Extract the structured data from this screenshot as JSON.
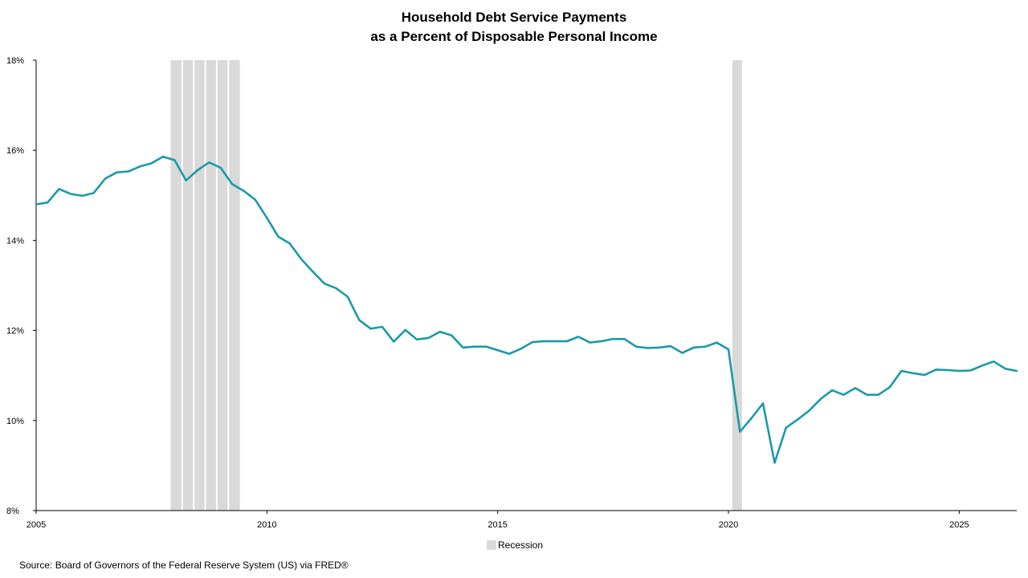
{
  "title": {
    "line1": "Household Debt Service Payments",
    "line2": "as a Percent of Disposable Personal Income"
  },
  "legend": {
    "recession_label": "Recession"
  },
  "source": "Source: Board of Governors of the Federal Reserve System (US) via FRED®",
  "colors": {
    "series": "#1a9aa8",
    "recession": "#d9d9d9",
    "axis": "#000000"
  },
  "chart_data": {
    "type": "line",
    "title": "Household Debt Service Payments as a Percent of Disposable Personal Income",
    "xlabel": "",
    "ylabel": "",
    "ylim": [
      8,
      18
    ],
    "xlim": [
      "2005-01-01",
      "2026-04-01"
    ],
    "y_ticks": [
      "8%",
      "10%",
      "12%",
      "14%",
      "16%",
      "18%"
    ],
    "y_tick_values": [
      8,
      10,
      12,
      14,
      16,
      18
    ],
    "x_ticks": [
      "2005",
      "2010",
      "2015",
      "2020",
      "2025"
    ],
    "x_tick_values": [
      "2005-01-01",
      "2010-01-01",
      "2015-01-01",
      "2020-01-01",
      "2025-01-01"
    ],
    "grid": false,
    "legend_position": "bottom-center",
    "recessions": [
      {
        "start": "2007-12-01",
        "end": "2009-06-01"
      },
      {
        "start": "2020-02-01",
        "end": "2020-04-01"
      }
    ],
    "series": [
      {
        "x": [
          "2005-01-01",
          "2005-04-01",
          "2005-07-01",
          "2005-10-01",
          "2006-01-01",
          "2006-04-01",
          "2006-07-01",
          "2006-10-01",
          "2007-01-01",
          "2007-04-01",
          "2007-07-01",
          "2007-10-01",
          "2008-01-01",
          "2008-04-01",
          "2008-07-01",
          "2008-10-01",
          "2009-01-01",
          "2009-04-01",
          "2009-07-01",
          "2009-10-01",
          "2010-01-01",
          "2010-04-01",
          "2010-07-01",
          "2010-10-01",
          "2011-01-01",
          "2011-04-01",
          "2011-07-01",
          "2011-10-01",
          "2012-01-01",
          "2012-04-01",
          "2012-07-01",
          "2012-10-01",
          "2013-01-01",
          "2013-04-01",
          "2013-07-01",
          "2013-10-01",
          "2014-01-01",
          "2014-04-01",
          "2014-07-01",
          "2014-10-01",
          "2015-01-01",
          "2015-04-01",
          "2015-07-01",
          "2015-10-01",
          "2016-01-01",
          "2016-04-01",
          "2016-07-01",
          "2016-10-01",
          "2017-01-01",
          "2017-04-01",
          "2017-07-01",
          "2017-10-01",
          "2018-01-01",
          "2018-04-01",
          "2018-07-01",
          "2018-10-01",
          "2019-01-01",
          "2019-04-01",
          "2019-07-01",
          "2019-10-01",
          "2020-01-01",
          "2020-04-01",
          "2020-07-01",
          "2020-10-01",
          "2021-01-01",
          "2021-04-01",
          "2021-07-01",
          "2021-10-01",
          "2022-01-01",
          "2022-04-01",
          "2022-07-01",
          "2022-10-01",
          "2023-01-01",
          "2023-04-01",
          "2023-07-01",
          "2023-10-01",
          "2024-01-01",
          "2024-04-01",
          "2024-07-01",
          "2024-10-01",
          "2025-01-01",
          "2025-04-01",
          "2025-07-01",
          "2025-10-01",
          "2026-01-01",
          "2026-04-01"
        ],
        "values": [
          14.8,
          14.84,
          15.14,
          15.03,
          14.99,
          15.05,
          15.37,
          15.51,
          15.53,
          15.64,
          15.71,
          15.86,
          15.78,
          15.33,
          15.56,
          15.73,
          15.61,
          15.25,
          15.1,
          14.9,
          14.5,
          14.08,
          13.93,
          13.58,
          13.3,
          13.04,
          12.94,
          12.75,
          12.23,
          12.04,
          12.08,
          11.75,
          12.01,
          11.8,
          11.83,
          11.97,
          11.89,
          11.62,
          11.64,
          11.64,
          11.56,
          11.48,
          11.59,
          11.74,
          11.76,
          11.76,
          11.76,
          11.86,
          11.73,
          11.76,
          11.81,
          11.81,
          11.64,
          11.61,
          11.62,
          11.65,
          11.5,
          11.62,
          11.64,
          11.73,
          11.58,
          9.75,
          10.05,
          10.38,
          9.06,
          9.84,
          10.02,
          10.22,
          10.48,
          10.67,
          10.57,
          10.72,
          10.57,
          10.57,
          10.74,
          11.1,
          11.05,
          11.01,
          11.13,
          11.12,
          11.1,
          11.11,
          11.22,
          11.31,
          11.15,
          11.1
        ]
      }
    ]
  }
}
